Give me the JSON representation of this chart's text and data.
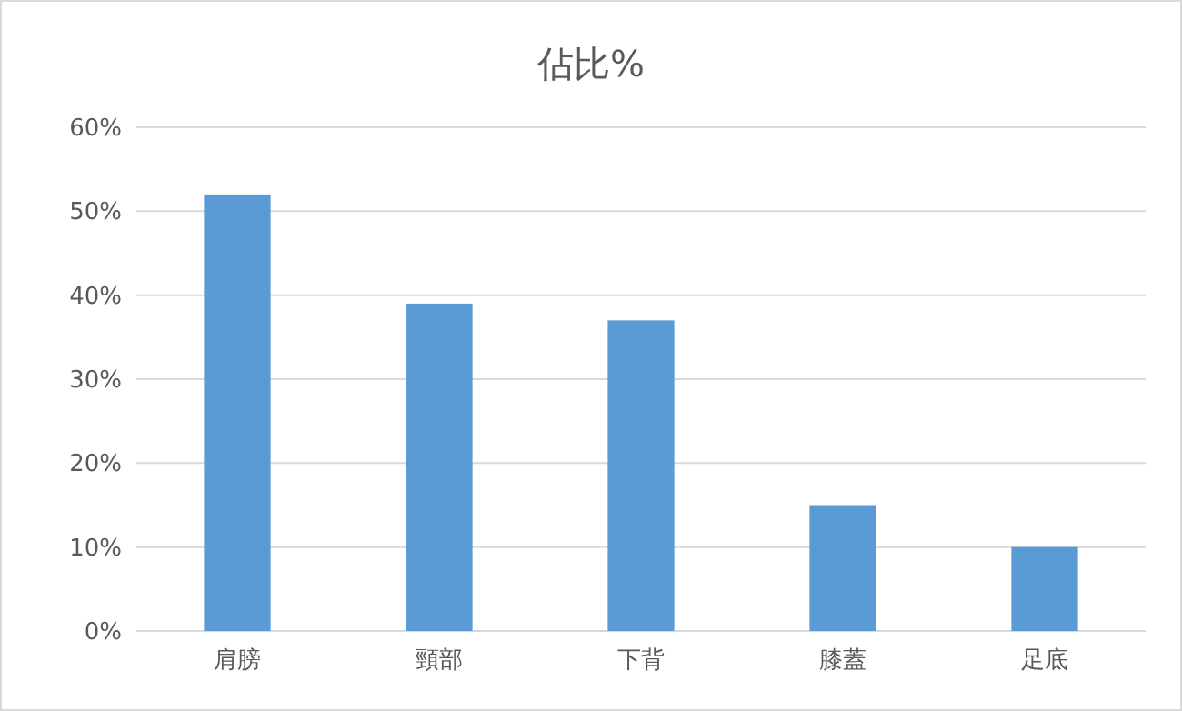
{
  "chart_data": {
    "type": "bar",
    "title": "佔比%",
    "categories": [
      "肩膀",
      "頸部",
      "下背",
      "膝蓋",
      "足底"
    ],
    "values": [
      52,
      39,
      37,
      15,
      10
    ],
    "color": "#5b9bd5",
    "ylim": [
      0,
      60
    ],
    "yticks": [
      {
        "value": 0,
        "label": "0%"
      },
      {
        "value": 10,
        "label": "10%"
      },
      {
        "value": 20,
        "label": "20%"
      },
      {
        "value": 30,
        "label": "30%"
      },
      {
        "value": 40,
        "label": "40%"
      },
      {
        "value": 50,
        "label": "50%"
      },
      {
        "value": 60,
        "label": "60%"
      }
    ],
    "grid": "y"
  }
}
